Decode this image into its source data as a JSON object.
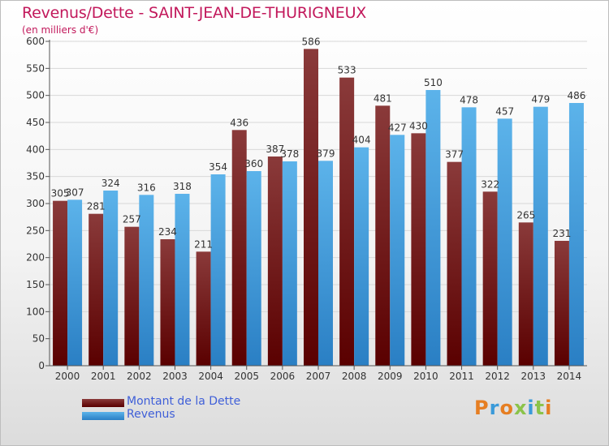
{
  "title": "Revenus/Dette - SAINT-JEAN-DE-THURIGNEUX",
  "subtitle": "(en milliers d'€)",
  "logo": {
    "text": "Proxiti",
    "colors": [
      "#e67e22",
      "#3a9ad9",
      "#e67e22",
      "#8bc34a",
      "#3a9ad9",
      "#8bc34a",
      "#e67e22"
    ]
  },
  "colors": {
    "dette_dark": "#5a0000",
    "dette_light": "#8a3a3a",
    "revenus_dark": "#2a7fc4",
    "revenus_light": "#5cb3ea"
  },
  "chart_data": {
    "type": "bar",
    "categories": [
      "2000",
      "2001",
      "2002",
      "2003",
      "2004",
      "2005",
      "2006",
      "2007",
      "2008",
      "2009",
      "2010",
      "2011",
      "2012",
      "2013",
      "2014"
    ],
    "series": [
      {
        "name": "Montant de la Dette",
        "values": [
          305,
          281,
          257,
          234,
          211,
          436,
          387,
          586,
          533,
          481,
          430,
          377,
          322,
          265,
          231
        ]
      },
      {
        "name": "Revenus",
        "values": [
          307,
          324,
          316,
          318,
          354,
          360,
          378,
          379,
          404,
          427,
          510,
          478,
          457,
          479,
          486
        ]
      }
    ],
    "yticks": [
      0,
      50,
      100,
      150,
      200,
      250,
      300,
      350,
      400,
      450,
      500,
      550,
      600
    ],
    "ylim": [
      0,
      600
    ],
    "grid": true,
    "legend_position": "bottom-left"
  }
}
